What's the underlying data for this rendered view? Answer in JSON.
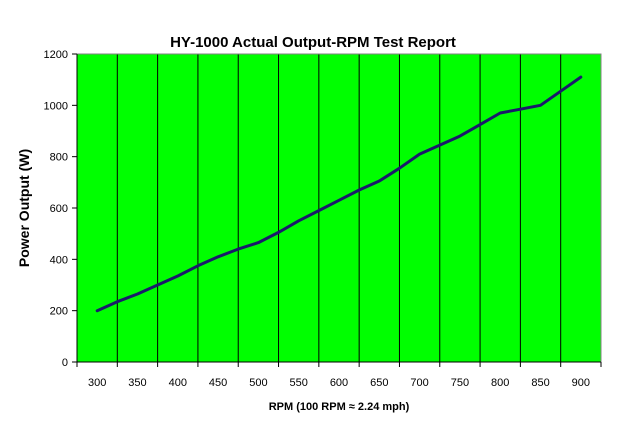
{
  "chart_data": {
    "type": "line",
    "title": "HY-1000 Actual Output-RPM Test Report",
    "xlabel": "RPM (100 RPM ≈ 2.24 mph)",
    "ylabel": "Power Output (W)",
    "categories": [
      "300",
      "350",
      "400",
      "450",
      "500",
      "550",
      "600",
      "650",
      "700",
      "750",
      "800",
      "850",
      "900"
    ],
    "y_ticks": [
      "0",
      "200",
      "400",
      "600",
      "800",
      "1000",
      "1200"
    ],
    "ylim": [
      0,
      1200
    ],
    "grid": "vertical",
    "series": [
      {
        "x": [
          300,
          325,
          350,
          375,
          400,
          425,
          450,
          475,
          500,
          525,
          550,
          575,
          600,
          625,
          650,
          675,
          700,
          725,
          750,
          775,
          800,
          825,
          850,
          875,
          900
        ],
        "values": [
          200,
          235,
          265,
          300,
          335,
          375,
          410,
          440,
          465,
          505,
          550,
          590,
          630,
          670,
          705,
          755,
          810,
          845,
          880,
          925,
          970,
          985,
          1000,
          1055,
          1110
        ]
      }
    ],
    "colors": {
      "plot_background": "#00ff00",
      "line": "#1a1a6b",
      "gridline": "#000000"
    }
  }
}
